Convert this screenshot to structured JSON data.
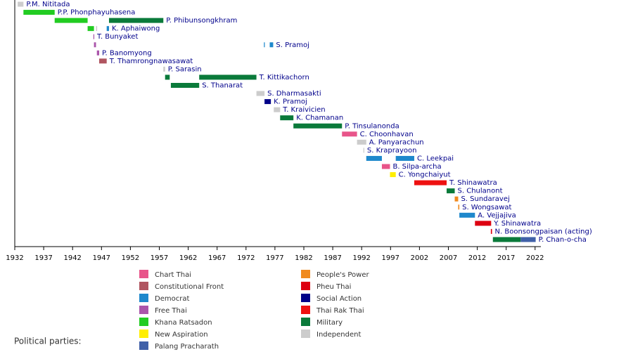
{
  "chart_data": {
    "type": "timeline",
    "xlim": [
      1932,
      2023
    ],
    "xticks": [
      1932,
      1937,
      1942,
      1947,
      1952,
      1957,
      1962,
      1967,
      1972,
      1977,
      1982,
      1987,
      1992,
      1997,
      2002,
      2007,
      2012,
      2017,
      2022
    ],
    "rows": [
      {
        "name": "P.M. Nititada",
        "segments": [
          {
            "start": 1932.5,
            "end": 1933.5,
            "color": "#cccccc"
          }
        ]
      },
      {
        "name": "P.P. Phonphayuhasena",
        "segments": [
          {
            "start": 1933.5,
            "end": 1938.9,
            "color": "#22cc22"
          }
        ]
      },
      {
        "name": "P. Phibunsongkhram",
        "segments": [
          {
            "start": 1938.9,
            "end": 1944.6,
            "color": "#22cc22"
          },
          {
            "start": 1948.3,
            "end": 1957.7,
            "color": "#0a7a3a"
          }
        ]
      },
      {
        "name": "K. Aphaiwong",
        "segments": [
          {
            "start": 1944.6,
            "end": 1945.7,
            "color": "#22cc22"
          },
          {
            "start": 1946.05,
            "end": 1946.25,
            "color": "#cccccc"
          },
          {
            "start": 1947.9,
            "end": 1948.3,
            "color": "#1e88cc"
          }
        ]
      },
      {
        "name": "T. Bunyaket",
        "segments": [
          {
            "start": 1945.6,
            "end": 1945.75,
            "color": "#aa55aa"
          }
        ]
      },
      {
        "name": "S. Pramoj",
        "segments": [
          {
            "start": 1945.7,
            "end": 1946.05,
            "color": "#aa55aa"
          },
          {
            "start": 1975.1,
            "end": 1975.25,
            "color": "#1e88cc"
          },
          {
            "start": 1976.1,
            "end": 1976.7,
            "color": "#1e88cc"
          }
        ]
      },
      {
        "name": "P. Banomyong",
        "segments": [
          {
            "start": 1946.2,
            "end": 1946.6,
            "color": "#aa55aa"
          }
        ]
      },
      {
        "name": "T. Thamrongnawasawat",
        "segments": [
          {
            "start": 1946.6,
            "end": 1947.9,
            "color": "#b05560"
          }
        ]
      },
      {
        "name": "P. Sarasin",
        "segments": [
          {
            "start": 1957.7,
            "end": 1958.0,
            "color": "#cccccc"
          }
        ]
      },
      {
        "name": "T. Kittikachorn",
        "segments": [
          {
            "start": 1958.0,
            "end": 1958.8,
            "color": "#0a7a3a"
          },
          {
            "start": 1963.9,
            "end": 1973.8,
            "color": "#0a7a3a"
          }
        ]
      },
      {
        "name": "S. Thanarat",
        "segments": [
          {
            "start": 1959.0,
            "end": 1963.9,
            "color": "#0a7a3a"
          }
        ]
      },
      {
        "name": "S. Dharmasakti",
        "segments": [
          {
            "start": 1973.8,
            "end": 1975.2,
            "color": "#cccccc"
          }
        ]
      },
      {
        "name": "K. Pramoj",
        "segments": [
          {
            "start": 1975.2,
            "end": 1976.3,
            "color": "#000088"
          }
        ]
      },
      {
        "name": "T. Kraivicien",
        "segments": [
          {
            "start": 1976.8,
            "end": 1977.9,
            "color": "#cccccc"
          }
        ]
      },
      {
        "name": "K. Chamanan",
        "segments": [
          {
            "start": 1977.9,
            "end": 1980.2,
            "color": "#0a7a3a"
          }
        ]
      },
      {
        "name": "P. Tinsulanonda",
        "segments": [
          {
            "start": 1980.2,
            "end": 1988.6,
            "color": "#0a7a3a"
          }
        ]
      },
      {
        "name": "C. Choonhavan",
        "segments": [
          {
            "start": 1988.6,
            "end": 1991.2,
            "color": "#e8558a"
          }
        ]
      },
      {
        "name": "A. Panyarachun",
        "segments": [
          {
            "start": 1991.2,
            "end": 1992.8,
            "color": "#cccccc"
          }
        ]
      },
      {
        "name": "S. Kraprayoon",
        "segments": [
          {
            "start": 1992.3,
            "end": 1992.45,
            "color": "#cccccc"
          }
        ]
      },
      {
        "name": "C. Leekpai",
        "segments": [
          {
            "start": 1992.8,
            "end": 1995.5,
            "color": "#1e88cc"
          },
          {
            "start": 1997.9,
            "end": 2001.1,
            "color": "#1e88cc"
          }
        ]
      },
      {
        "name": "B. Silpa-archa",
        "segments": [
          {
            "start": 1995.5,
            "end": 1996.9,
            "color": "#e8558a"
          }
        ]
      },
      {
        "name": "C. Yongchaiyut",
        "segments": [
          {
            "start": 1996.9,
            "end": 1997.9,
            "color": "#ffee00"
          }
        ]
      },
      {
        "name": "T. Shinawatra",
        "segments": [
          {
            "start": 2001.1,
            "end": 2006.7,
            "color": "#ee1111"
          }
        ]
      },
      {
        "name": "S. Chulanont",
        "segments": [
          {
            "start": 2006.7,
            "end": 2008.1,
            "color": "#0a7a3a"
          }
        ]
      },
      {
        "name": "S. Sundaravej",
        "segments": [
          {
            "start": 2008.1,
            "end": 2008.7,
            "color": "#f08a1e"
          }
        ]
      },
      {
        "name": "S. Wongsawat",
        "segments": [
          {
            "start": 2008.7,
            "end": 2008.9,
            "color": "#f08a1e"
          }
        ]
      },
      {
        "name": "A. Vejjajiva",
        "segments": [
          {
            "start": 2008.9,
            "end": 2011.6,
            "color": "#1e88cc"
          }
        ]
      },
      {
        "name": "Y. Shinawatra",
        "segments": [
          {
            "start": 2011.6,
            "end": 2014.4,
            "color": "#dd0011"
          }
        ]
      },
      {
        "name": "N. Boonsongpaisan (acting)",
        "segments": [
          {
            "start": 2014.35,
            "end": 2014.55,
            "color": "#dd0011"
          }
        ]
      },
      {
        "name": "P. Chan-o-cha",
        "segments": [
          {
            "start": 2014.7,
            "end": 2019.5,
            "color": "#0a7a3a"
          },
          {
            "start": 2019.5,
            "end": 2022.1,
            "color": "#4060a8"
          }
        ]
      }
    ],
    "legend_title": "Political parties:",
    "parties": [
      {
        "name": "Chart Thai",
        "color": "#e8558a"
      },
      {
        "name": "Constitutional Front",
        "color": "#b05560"
      },
      {
        "name": "Democrat",
        "color": "#1e88cc"
      },
      {
        "name": "Free Thai",
        "color": "#aa55aa"
      },
      {
        "name": "Khana Ratsadon",
        "color": "#22cc22"
      },
      {
        "name": "New Aspiration",
        "color": "#ffee00"
      },
      {
        "name": "Palang Pracharath",
        "color": "#4060a8"
      },
      {
        "name": "People's Power",
        "color": "#f08a1e"
      },
      {
        "name": "Pheu Thai",
        "color": "#dd0011"
      },
      {
        "name": "Social Action",
        "color": "#000088"
      },
      {
        "name": "Thai Rak Thai",
        "color": "#ee1111"
      },
      {
        "name": "Military",
        "color": "#0a7a3a"
      },
      {
        "name": "Independent",
        "color": "#cccccc"
      }
    ]
  }
}
